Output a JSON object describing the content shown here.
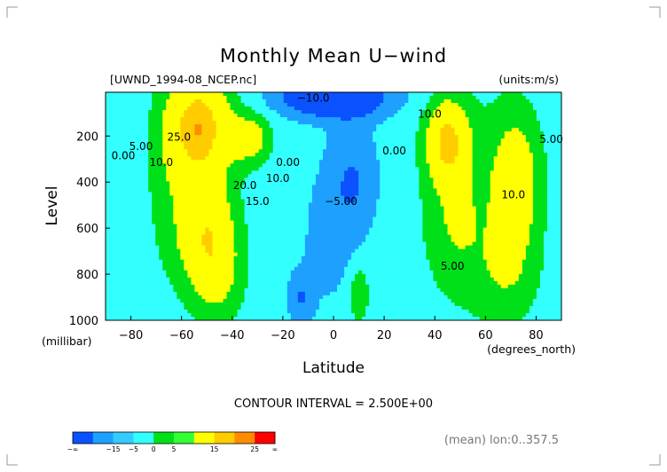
{
  "chart_data": {
    "type": "heatmap",
    "title": "Monthly Mean U−wind",
    "source_label": "[UWND_1994-08_NCEP.nc]",
    "units_label": "(units:m/s)",
    "xlabel": "Latitude",
    "ylabel": "Level",
    "x_unit": "(degrees_north)",
    "y_unit": "(millibar)",
    "xlim": [
      -90,
      90
    ],
    "ylim": [
      1000,
      10
    ],
    "y_reversed": true,
    "x_ticks": [
      "−80",
      "−60",
      "−40",
      "−20",
      "0",
      "20",
      "40",
      "60",
      "80"
    ],
    "x_tick_values": [
      -80,
      -60,
      -40,
      -20,
      0,
      20,
      40,
      60,
      80
    ],
    "y_ticks": [
      "200",
      "400",
      "600",
      "800",
      "1000"
    ],
    "y_tick_values": [
      200,
      400,
      600,
      800,
      1000
    ],
    "contour_interval_text": "CONTOUR INTERVAL = 2.500E+00",
    "contour_interval": 2.5,
    "note": "(mean) lon:0..357.5",
    "contour_labels": [
      {
        "text": "0.00",
        "lat": -83,
        "lev": 300
      },
      {
        "text": "5.00",
        "lat": -76,
        "lev": 260
      },
      {
        "text": "10.0",
        "lat": -68,
        "lev": 330
      },
      {
        "text": "25.0",
        "lat": -61,
        "lev": 220
      },
      {
        "text": "20.0",
        "lat": -35,
        "lev": 430
      },
      {
        "text": "15.0",
        "lat": -30,
        "lev": 500
      },
      {
        "text": "10.0",
        "lat": -22,
        "lev": 400
      },
      {
        "text": "0.00",
        "lat": -18,
        "lev": 330
      },
      {
        "text": "−10.0",
        "lat": -8,
        "lev": 50
      },
      {
        "text": "−5.00",
        "lat": 3,
        "lev": 500
      },
      {
        "text": "0.00",
        "lat": 24,
        "lev": 280
      },
      {
        "text": "10.0",
        "lat": 38,
        "lev": 120
      },
      {
        "text": "5.00",
        "lat": 47,
        "lev": 780
      },
      {
        "text": "10.0",
        "lat": 71,
        "lev": 470
      },
      {
        "text": "5.00",
        "lat": 86,
        "lev": 230
      }
    ],
    "colorbar": {
      "levels": [
        "−∞",
        "−15",
        "−5",
        "0",
        "5",
        "15",
        "25",
        "∞"
      ],
      "colors": [
        "#0a52ff",
        "#1ea0ff",
        "#33ccff",
        "#33ffff",
        "#00e018",
        "#33ff33",
        "#ffff00",
        "#ffcc00",
        "#ff8c00",
        "#ff0000"
      ]
    },
    "field_colors": {
      "le_-10": "#0a52ff",
      "le_-5": "#1ea0ff",
      "le_0": "#33ffff",
      "le_5": "#00e018",
      "le_15": "#ffff00",
      "le_20": "#ffcc00",
      "le_25": "#ff8c00",
      "gt_25": "#ff0000"
    },
    "features": [
      {
        "lat": -53,
        "lev": 160,
        "peak": 22,
        "dlat": 12,
        "dlev": 230
      },
      {
        "lat": -33,
        "lev": 210,
        "peak": 11,
        "dlat": 8,
        "dlev": 110
      },
      {
        "lat": -50,
        "lev": 620,
        "peak": 15,
        "dlat": 11,
        "dlev": 230
      },
      {
        "lat": -46,
        "lev": 820,
        "peak": 7,
        "dlat": 10,
        "dlev": 200
      },
      {
        "lat": -65,
        "lev": 400,
        "peak": 4,
        "dlat": 9,
        "dlev": 400
      },
      {
        "lat": 45,
        "lev": 220,
        "peak": 18,
        "dlat": 8,
        "dlev": 170
      },
      {
        "lat": 48,
        "lev": 560,
        "peak": 6,
        "dlat": 11,
        "dlev": 300
      },
      {
        "lat": 72,
        "lev": 400,
        "peak": 12,
        "dlat": 9,
        "dlev": 280
      },
      {
        "lat": 68,
        "lev": 790,
        "peak": 6,
        "dlat": 12,
        "dlev": 220
      },
      {
        "lat": 58,
        "lev": 450,
        "peak": 3,
        "dlat": 22,
        "dlev": 500
      },
      {
        "lat": 0,
        "lev": 30,
        "peak": -17,
        "dlat": 22,
        "dlev": 90
      },
      {
        "lat": 8,
        "lev": 380,
        "peak": -7,
        "dlat": 10,
        "dlev": 250
      },
      {
        "lat": -13,
        "lev": 900,
        "peak": -7,
        "dlat": 5,
        "dlev": 110
      },
      {
        "lat": -2,
        "lev": 650,
        "peak": -4,
        "dlat": 12,
        "dlev": 330
      },
      {
        "lat": 10,
        "lev": 880,
        "peak": 7,
        "dlat": 4,
        "dlev": 130
      },
      {
        "lat": -84,
        "lev": 800,
        "peak": -2,
        "dlat": 5,
        "dlev": 200
      }
    ],
    "field_base": -2.5
  }
}
